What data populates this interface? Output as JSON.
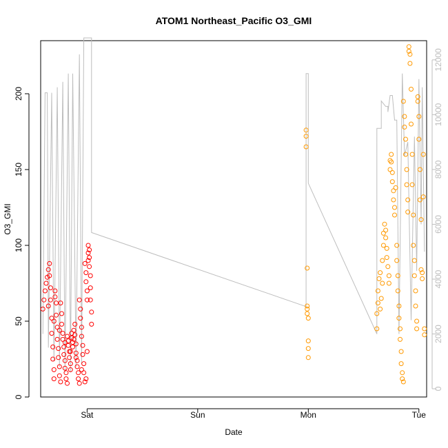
{
  "chart_data": {
    "type": "scatter",
    "title": "ATOM1 Northeast_Pacific O3_GMI",
    "xlabel": "Date",
    "ylabel": "O3_GMI",
    "x_ticks": [
      "Sat",
      "Sun",
      "Mon",
      "Tue"
    ],
    "xlim": [
      -0.42,
      3.07
    ],
    "ylim": [
      0,
      235
    ],
    "y_ticks": [
      0,
      50,
      100,
      150,
      200
    ],
    "y2lim": [
      -300,
      12700
    ],
    "y2_ticks": [
      0,
      2000,
      4000,
      6000,
      8000,
      10000,
      12000
    ],
    "y2_color": "#bdbdbd",
    "grid": false,
    "series": [
      {
        "color": "#ff0000",
        "marker": "open-circle",
        "points": [
          [
            -0.4,
            58
          ],
          [
            -0.39,
            64
          ],
          [
            -0.38,
            70
          ],
          [
            -0.37,
            75
          ],
          [
            -0.36,
            79
          ],
          [
            -0.35,
            84
          ],
          [
            -0.34,
            88
          ],
          [
            -0.34,
            80
          ],
          [
            -0.33,
            72
          ],
          [
            -0.33,
            64
          ],
          [
            -0.32,
            52
          ],
          [
            -0.32,
            42
          ],
          [
            -0.31,
            33
          ],
          [
            -0.31,
            25
          ],
          [
            -0.3,
            18
          ],
          [
            -0.3,
            12
          ],
          [
            -0.29,
            66
          ],
          [
            -0.29,
            70
          ],
          [
            -0.28,
            62
          ],
          [
            -0.28,
            54
          ],
          [
            -0.27,
            46
          ],
          [
            -0.27,
            38
          ],
          [
            -0.26,
            32
          ],
          [
            -0.26,
            26
          ],
          [
            -0.25,
            20
          ],
          [
            -0.25,
            14
          ],
          [
            -0.24,
            10
          ],
          [
            -0.24,
            62
          ],
          [
            -0.23,
            55
          ],
          [
            -0.23,
            48
          ],
          [
            -0.22,
            42
          ],
          [
            -0.22,
            38
          ],
          [
            -0.21,
            33
          ],
          [
            -0.21,
            28
          ],
          [
            -0.2,
            24
          ],
          [
            -0.2,
            19
          ],
          [
            -0.19,
            16
          ],
          [
            -0.19,
            12
          ],
          [
            -0.18,
            9
          ],
          [
            -0.18,
            40
          ],
          [
            -0.17,
            37
          ],
          [
            -0.17,
            34
          ],
          [
            -0.16,
            30
          ],
          [
            -0.16,
            26
          ],
          [
            -0.15,
            22
          ],
          [
            -0.15,
            18
          ],
          [
            -0.14,
            42
          ],
          [
            -0.14,
            39
          ],
          [
            -0.13,
            36
          ],
          [
            -0.13,
            33
          ],
          [
            -0.12,
            38
          ],
          [
            -0.12,
            44
          ],
          [
            -0.11,
            48
          ],
          [
            -0.11,
            41
          ],
          [
            -0.1,
            35
          ],
          [
            -0.1,
            29
          ],
          [
            -0.09,
            24
          ],
          [
            -0.09,
            20
          ],
          [
            -0.08,
            16
          ],
          [
            -0.08,
            12
          ],
          [
            -0.07,
            9
          ],
          [
            -0.07,
            64
          ],
          [
            -0.06,
            58
          ],
          [
            -0.06,
            52
          ],
          [
            -0.05,
            46
          ],
          [
            -0.05,
            40
          ],
          [
            -0.04,
            34
          ],
          [
            -0.04,
            28
          ],
          [
            -0.03,
            22
          ],
          [
            -0.03,
            16
          ],
          [
            -0.02,
            10
          ],
          [
            -0.02,
            88
          ],
          [
            -0.01,
            82
          ],
          [
            -0.01,
            76
          ],
          [
            0,
            70
          ],
          [
            0,
            64
          ],
          [
            0.01,
            90
          ],
          [
            0.01,
            95
          ],
          [
            0.01,
            100
          ],
          [
            0.02,
            97
          ],
          [
            0.02,
            92
          ],
          [
            0.02,
            86
          ],
          [
            0.03,
            80
          ],
          [
            0.03,
            72
          ],
          [
            0.03,
            64
          ],
          [
            0.04,
            56
          ],
          [
            0.04,
            48
          ],
          [
            -0.35,
            60
          ],
          [
            -0.3,
            50
          ],
          [
            -0.25,
            44
          ],
          [
            -0.2,
            36
          ],
          [
            -0.15,
            30
          ],
          [
            -0.1,
            26
          ],
          [
            -0.05,
            18
          ],
          [
            -0.01,
            12
          ],
          [
            0,
            30
          ]
        ]
      },
      {
        "color": "#ff9900",
        "marker": "open-circle",
        "points": [
          [
            1.98,
            176
          ],
          [
            1.98,
            172
          ],
          [
            1.98,
            165
          ],
          [
            1.99,
            85
          ],
          [
            1.99,
            60
          ],
          [
            1.99,
            58
          ],
          [
            1.99,
            55
          ],
          [
            2,
            52
          ],
          [
            2,
            37
          ],
          [
            2,
            32
          ],
          [
            2,
            26
          ],
          [
            2.62,
            45
          ],
          [
            2.62,
            55
          ],
          [
            2.63,
            62
          ],
          [
            2.63,
            70
          ],
          [
            2.64,
            78
          ],
          [
            2.65,
            82
          ],
          [
            2.65,
            58
          ],
          [
            2.66,
            65
          ],
          [
            2.67,
            75
          ],
          [
            2.67,
            90
          ],
          [
            2.68,
            100
          ],
          [
            2.68,
            108
          ],
          [
            2.69,
            114
          ],
          [
            2.7,
            110
          ],
          [
            2.7,
            105
          ],
          [
            2.71,
            98
          ],
          [
            2.71,
            92
          ],
          [
            2.72,
            86
          ],
          [
            2.73,
            80
          ],
          [
            2.73,
            75
          ],
          [
            2.74,
            150
          ],
          [
            2.74,
            156
          ],
          [
            2.75,
            160
          ],
          [
            2.75,
            155
          ],
          [
            2.76,
            148
          ],
          [
            2.76,
            142
          ],
          [
            2.77,
            136
          ],
          [
            2.77,
            130
          ],
          [
            2.78,
            125
          ],
          [
            2.78,
            120
          ],
          [
            2.79,
            138
          ],
          [
            2.8,
            100
          ],
          [
            2.8,
            90
          ],
          [
            2.81,
            80
          ],
          [
            2.81,
            70
          ],
          [
            2.82,
            60
          ],
          [
            2.82,
            52
          ],
          [
            2.83,
            45
          ],
          [
            2.83,
            38
          ],
          [
            2.84,
            30
          ],
          [
            2.84,
            22
          ],
          [
            2.85,
            16
          ],
          [
            2.85,
            12
          ],
          [
            2.86,
            10
          ],
          [
            2.86,
            195
          ],
          [
            2.87,
            185
          ],
          [
            2.87,
            178
          ],
          [
            2.88,
            170
          ],
          [
            2.88,
            160
          ],
          [
            2.89,
            150
          ],
          [
            2.89,
            140
          ],
          [
            2.9,
            130
          ],
          [
            2.9,
            122
          ],
          [
            2.91,
            228
          ],
          [
            2.91,
            231
          ],
          [
            2.92,
            226
          ],
          [
            2.92,
            220
          ],
          [
            2.93,
            203
          ],
          [
            2.93,
            180
          ],
          [
            2.94,
            160
          ],
          [
            2.94,
            140
          ],
          [
            2.95,
            120
          ],
          [
            2.95,
            100
          ],
          [
            2.96,
            90
          ],
          [
            2.96,
            80
          ],
          [
            2.97,
            70
          ],
          [
            2.97,
            60
          ],
          [
            2.98,
            50
          ],
          [
            2.98,
            45
          ],
          [
            2.99,
            198
          ],
          [
            2.99,
            195
          ],
          [
            3,
            185
          ],
          [
            3,
            170
          ],
          [
            3.01,
            150
          ],
          [
            3.01,
            130
          ],
          [
            3.02,
            117
          ],
          [
            3.02,
            84
          ],
          [
            3.03,
            82
          ],
          [
            3.03,
            78
          ],
          [
            3.04,
            160
          ],
          [
            3.04,
            132
          ],
          [
            3.05,
            45
          ],
          [
            3.05,
            41
          ]
        ]
      }
    ],
    "secondary_line": {
      "color": "#bdbdbd",
      "points": [
        [
          -0.4,
          2000
        ],
        [
          -0.38,
          10800
        ],
        [
          -0.36,
          10800
        ],
        [
          -0.35,
          1500
        ],
        [
          -0.32,
          10800
        ],
        [
          -0.3,
          1000
        ],
        [
          -0.27,
          11000
        ],
        [
          -0.25,
          800
        ],
        [
          -0.22,
          11200
        ],
        [
          -0.2,
          600
        ],
        [
          -0.17,
          11500
        ],
        [
          -0.15,
          600
        ],
        [
          -0.13,
          11500
        ],
        [
          -0.1,
          800
        ],
        [
          -0.07,
          12200
        ],
        [
          -0.05,
          900
        ],
        [
          -0.03,
          12800
        ],
        [
          0.04,
          12800
        ],
        [
          0.04,
          5700
        ],
        [
          1.98,
          3000
        ],
        [
          1.98,
          11500
        ],
        [
          2.0,
          11500
        ],
        [
          2.0,
          7500
        ],
        [
          2.62,
          2000
        ],
        [
          2.62,
          9500
        ],
        [
          2.66,
          9500
        ],
        [
          2.66,
          10500
        ],
        [
          2.7,
          10300
        ],
        [
          2.72,
          10300
        ],
        [
          2.72,
          10100
        ],
        [
          2.74,
          10700
        ],
        [
          2.76,
          10700
        ],
        [
          2.78,
          9800
        ],
        [
          2.8,
          9800
        ],
        [
          2.82,
          2000
        ],
        [
          2.85,
          11500
        ],
        [
          2.87,
          8500
        ],
        [
          2.9,
          9000
        ],
        [
          2.93,
          2500
        ],
        [
          2.96,
          9200
        ],
        [
          2.98,
          4300
        ],
        [
          3.0,
          11300
        ],
        [
          3.02,
          6000
        ],
        [
          3.03,
          11000
        ],
        [
          3.05,
          5000
        ]
      ]
    }
  }
}
